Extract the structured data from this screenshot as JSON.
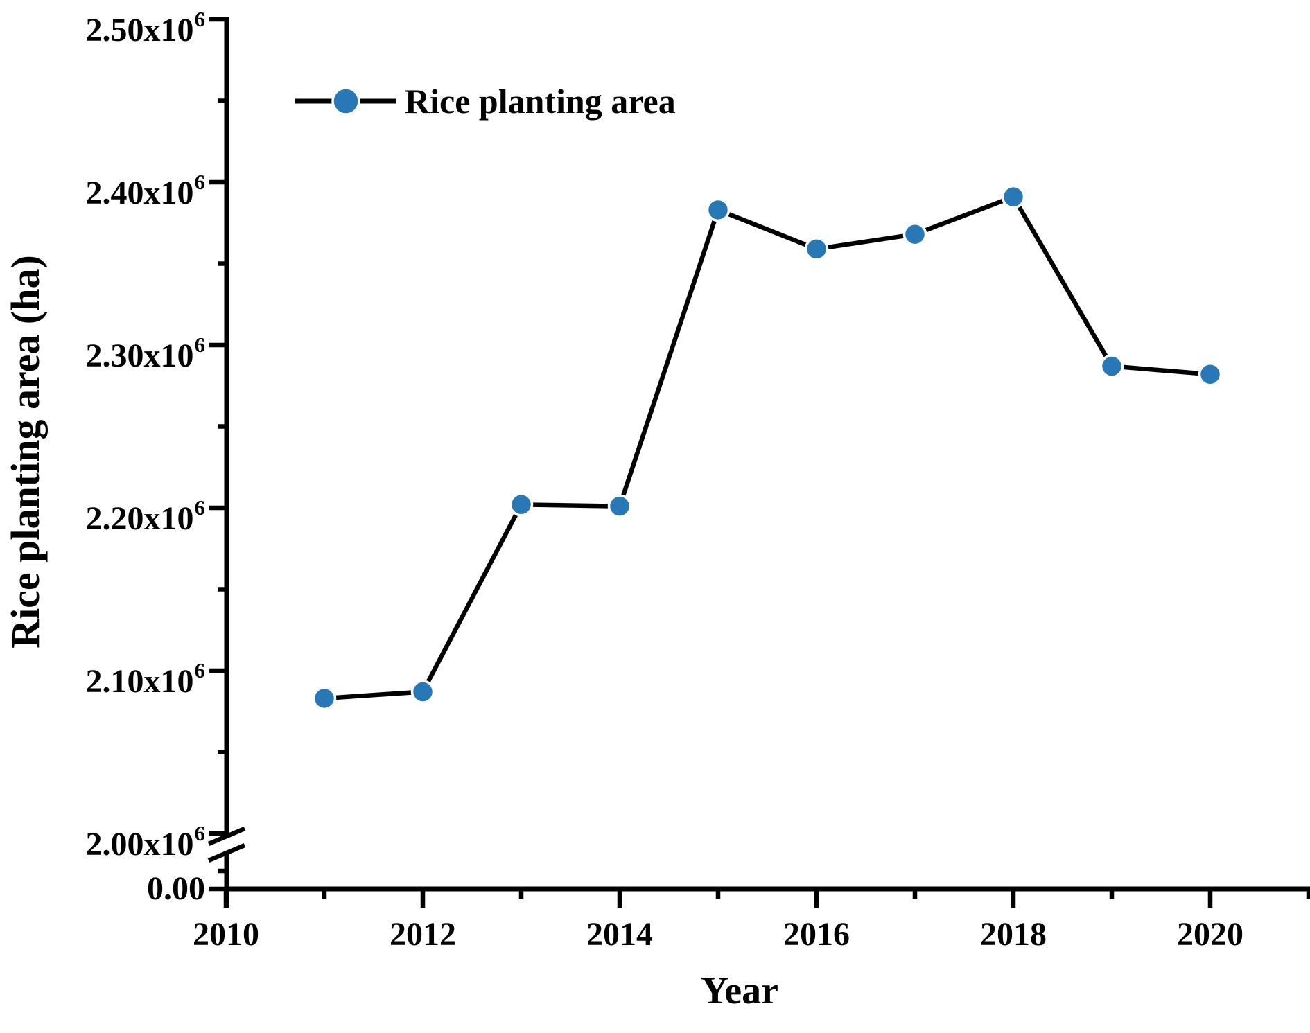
{
  "figure": {
    "background": "#ffffff",
    "legend": {
      "label": "Rice planting area"
    },
    "y_axis": {
      "title": "Rice planting area (ha)",
      "ticks": [
        {
          "value": 2500000,
          "text": "2.50x10",
          "sup": "6"
        },
        {
          "value": 2400000,
          "text": "2.40x10",
          "sup": "6"
        },
        {
          "value": 2300000,
          "text": "2.30x10",
          "sup": "6"
        },
        {
          "value": 2200000,
          "text": "2.20x10",
          "sup": "6"
        },
        {
          "value": 2100000,
          "text": "2.10x10",
          "sup": "6"
        },
        {
          "value": 2000000,
          "text": "2.00x10",
          "sup": "6"
        },
        {
          "value": 0,
          "text": "0.00",
          "sup": ""
        }
      ],
      "has_axis_break": true
    },
    "x_axis": {
      "title": "Year",
      "ticks": [
        {
          "year": 2010,
          "label": "2010"
        },
        {
          "year": 2012,
          "label": "2012"
        },
        {
          "year": 2014,
          "label": "2014"
        },
        {
          "year": 2016,
          "label": "2016"
        },
        {
          "year": 2018,
          "label": "2018"
        },
        {
          "year": 2020,
          "label": "2020"
        }
      ],
      "minor_years": [
        2011,
        2013,
        2015,
        2017,
        2019,
        2021
      ]
    },
    "colors": {
      "marker_fill": "#2878b5",
      "marker_edge": "#ffffff",
      "line": "#000000",
      "axis": "#000000",
      "text": "#000000"
    }
  },
  "chart_data": {
    "type": "line",
    "title": "",
    "xlabel": "Year",
    "ylabel": "Rice planting area (ha)",
    "x": [
      2011,
      2012,
      2013,
      2014,
      2015,
      2016,
      2017,
      2018,
      2019,
      2020
    ],
    "series": [
      {
        "name": "Rice planting area",
        "values": [
          2083000,
          2087000,
          2202000,
          2201000,
          2383000,
          2359000,
          2368000,
          2391000,
          2287000,
          2282000
        ]
      }
    ],
    "xlim": [
      2010,
      2021
    ],
    "ylim_display": [
      2000000,
      2500000
    ],
    "y_major_step": 100000,
    "axis_break": {
      "below_value": 2000000,
      "resumes_at": 0
    },
    "grid": false,
    "legend_position": "upper-left-inside",
    "marker": "circle",
    "line_style": "solid"
  }
}
